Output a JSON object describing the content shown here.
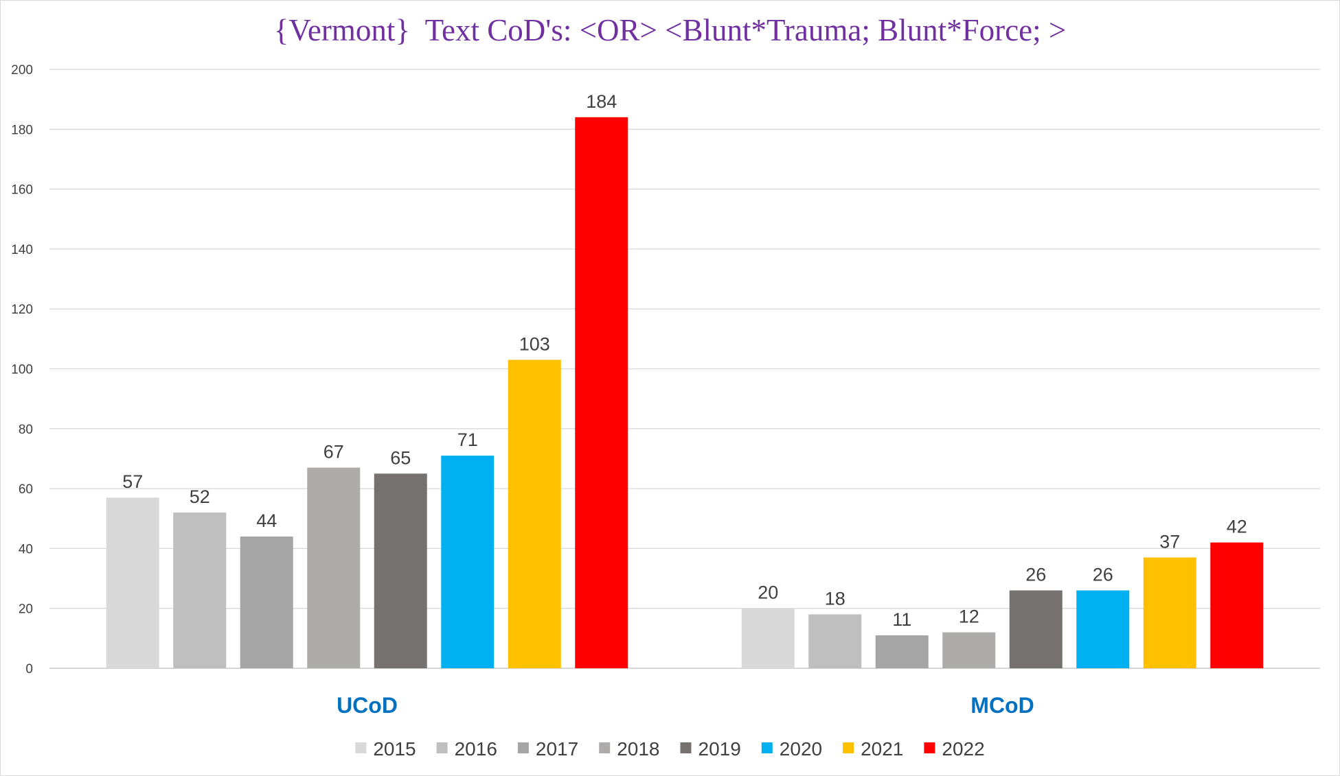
{
  "chart_data": {
    "type": "bar",
    "title": "{Vermont}  Text CoD's: <OR> <Blunt*Trauma; Blunt*Force; >",
    "categories": [
      "UCoD",
      "MCoD"
    ],
    "series": [
      {
        "name": "2015",
        "color": "#d9d9d9",
        "values": [
          57,
          20
        ]
      },
      {
        "name": "2016",
        "color": "#bfbfbf",
        "values": [
          52,
          18
        ]
      },
      {
        "name": "2017",
        "color": "#a5a5a5",
        "values": [
          44,
          11
        ]
      },
      {
        "name": "2018",
        "color": "#aeabab",
        "values": [
          67,
          12
        ]
      },
      {
        "name": "2019",
        "color": "#767171",
        "values": [
          65,
          26
        ]
      },
      {
        "name": "2020",
        "color": "#00b0f0",
        "values": [
          71,
          26
        ]
      },
      {
        "name": "2021",
        "color": "#ffc000",
        "values": [
          103,
          37
        ]
      },
      {
        "name": "2022",
        "color": "#ff0000",
        "values": [
          184,
          42
        ]
      }
    ],
    "ylim": [
      0,
      200
    ],
    "yticks": [
      0,
      20,
      40,
      60,
      80,
      100,
      120,
      140,
      160,
      180,
      200
    ],
    "grid": true,
    "legend": "bottom",
    "xlabel": "",
    "ylabel": ""
  }
}
